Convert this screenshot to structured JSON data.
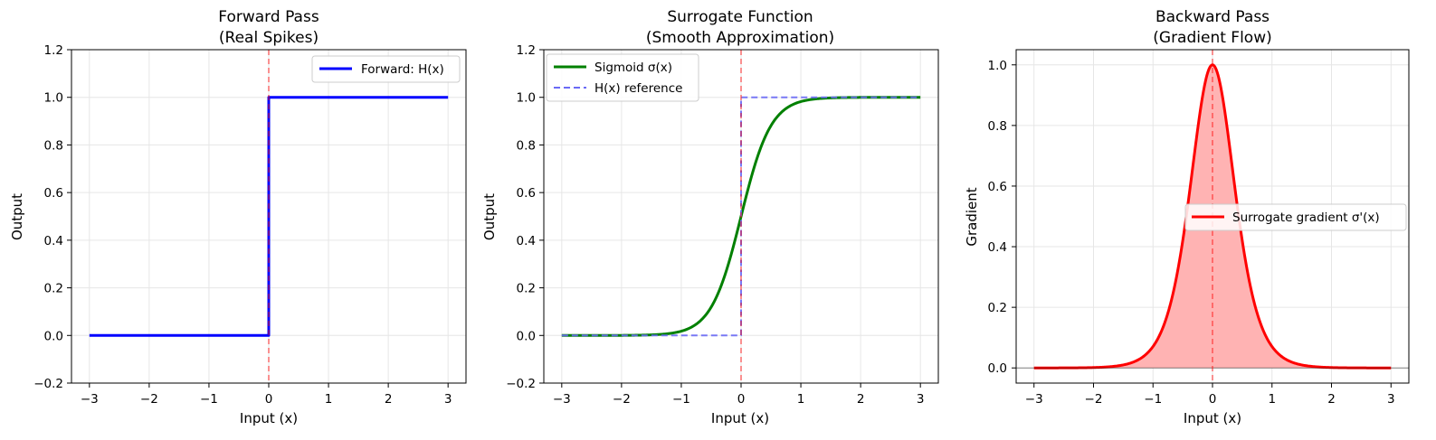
{
  "chart_data": [
    {
      "type": "line",
      "title": "Forward Pass",
      "subtitle": "(Real Spikes)",
      "xlabel": "Input (x)",
      "ylabel": "Output",
      "xlim": [
        -3.3,
        3.3
      ],
      "ylim": [
        -0.2,
        1.2
      ],
      "xticks": [
        -3,
        -2,
        -1,
        0,
        1,
        2,
        3
      ],
      "xtick_labels": [
        "−3",
        "−2",
        "−1",
        "0",
        "1",
        "2",
        "3"
      ],
      "yticks": [
        -0.2,
        0.0,
        0.2,
        0.4,
        0.6,
        0.8,
        1.0,
        1.2
      ],
      "ytick_labels": [
        "−0.2",
        "0.0",
        "0.2",
        "0.4",
        "0.6",
        "0.8",
        "1.0",
        "1.2"
      ],
      "grid": true,
      "legend_position": "upper right",
      "vline": {
        "x": 0,
        "color": "#ff0000",
        "style": "dashed"
      },
      "series": [
        {
          "name": "Forward: H(x)",
          "function": "step",
          "x_range": [
            -3,
            3
          ],
          "color": "#0000ff",
          "style": "solid",
          "width": 3
        }
      ]
    },
    {
      "type": "line",
      "title": "Surrogate Function",
      "subtitle": "(Smooth Approximation)",
      "xlabel": "Input (x)",
      "ylabel": "Output",
      "xlim": [
        -3.3,
        3.3
      ],
      "ylim": [
        -0.2,
        1.2
      ],
      "xticks": [
        -3,
        -2,
        -1,
        0,
        1,
        2,
        3
      ],
      "xtick_labels": [
        "−3",
        "−2",
        "−1",
        "0",
        "1",
        "2",
        "3"
      ],
      "yticks": [
        -0.2,
        0.0,
        0.2,
        0.4,
        0.6,
        0.8,
        1.0,
        1.2
      ],
      "ytick_labels": [
        "−0.2",
        "0.0",
        "0.2",
        "0.4",
        "0.6",
        "0.8",
        "1.0",
        "1.2"
      ],
      "grid": true,
      "legend_position": "upper left",
      "vline": {
        "x": 0,
        "color": "#ff0000",
        "style": "dashed"
      },
      "series": [
        {
          "name": "Sigmoid σ(x)",
          "function": "sigmoid",
          "k": 4,
          "x_range": [
            -3,
            3
          ],
          "color": "#008000",
          "style": "solid",
          "width": 3
        },
        {
          "name": "H(x) reference",
          "function": "step",
          "x_range": [
            -3,
            3
          ],
          "color": "#6a6af5",
          "style": "dashed",
          "width": 2
        }
      ]
    },
    {
      "type": "area",
      "title": "Backward Pass",
      "subtitle": "(Gradient Flow)",
      "xlabel": "Input (x)",
      "ylabel": "Gradient",
      "xlim": [
        -3.3,
        3.3
      ],
      "ylim": [
        -0.05,
        1.05
      ],
      "xticks": [
        -3,
        -2,
        -1,
        0,
        1,
        2,
        3
      ],
      "xtick_labels": [
        "−3",
        "−2",
        "−1",
        "0",
        "1",
        "2",
        "3"
      ],
      "yticks": [
        0.0,
        0.2,
        0.4,
        0.6,
        0.8,
        1.0
      ],
      "ytick_labels": [
        "0.0",
        "0.2",
        "0.4",
        "0.6",
        "0.8",
        "1.0"
      ],
      "grid": true,
      "legend_position": "center right",
      "vline": {
        "x": 0,
        "color": "#ff0000",
        "style": "dashed"
      },
      "hline": {
        "y": 0,
        "color": "#000000"
      },
      "series": [
        {
          "name": "Surrogate gradient σ'(x)",
          "function": "sigmoid_derivative_normalized",
          "k": 4,
          "x_range": [
            -3,
            3
          ],
          "color": "#ff0000",
          "fill": "#ffb3b3",
          "style": "solid",
          "width": 3
        }
      ]
    }
  ]
}
